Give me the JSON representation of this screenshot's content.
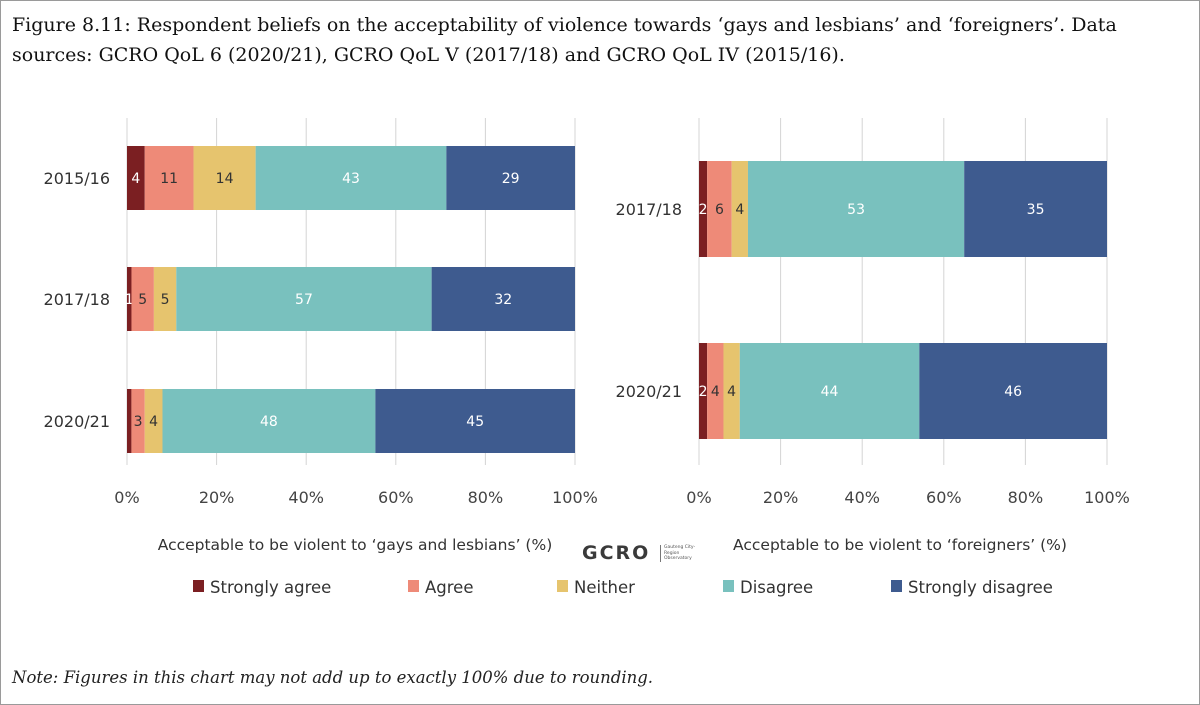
{
  "figure": {
    "title": "Figure 8.11: Respondent beliefs on the acceptability of violence towards ‘gays and lesbians’ and ‘foreigners’. Data sources: GCRO QoL 6 (2020/21), GCRO QoL V (2017/18) and GCRO QoL IV (2015/16).",
    "note": "Note: Figures in this chart may not add up to exactly 100% due to rounding.",
    "logo": {
      "text": "GCRO",
      "subtitle": "Gauteng City-Region Observatory"
    }
  },
  "legend": [
    {
      "label": "Strongly agree",
      "color": "#7b1f22"
    },
    {
      "label": "Agree",
      "color": "#ee8a78"
    },
    {
      "label": "Neither",
      "color": "#e6c46e"
    },
    {
      "label": "Disagree",
      "color": "#79c1be"
    },
    {
      "label": "Strongly disagree",
      "color": "#3e5b8f"
    }
  ],
  "chart_data": [
    {
      "type": "bar",
      "orientation": "horizontal",
      "stacked": true,
      "xlabel": "Acceptable to be violent to ‘gays and lesbians’ (%)",
      "ylabel": "",
      "xlim": [
        0,
        100
      ],
      "xticks": [
        "0%",
        "20%",
        "40%",
        "60%",
        "80%",
        "100%"
      ],
      "grid": true,
      "categories": [
        "2015/16",
        "2017/18",
        "2020/21"
      ],
      "series": [
        {
          "name": "Strongly agree",
          "values": [
            4,
            1,
            1
          ],
          "labels": [
            "4",
            "1",
            ""
          ]
        },
        {
          "name": "Agree",
          "values": [
            11,
            5,
            3
          ],
          "labels": [
            "11",
            "5",
            "3"
          ]
        },
        {
          "name": "Neither",
          "values": [
            14,
            5,
            4
          ],
          "labels": [
            "14",
            "5",
            "4"
          ]
        },
        {
          "name": "Disagree",
          "values": [
            43,
            57,
            48
          ],
          "labels": [
            "43",
            "57",
            "48"
          ]
        },
        {
          "name": "Strongly disagree",
          "values": [
            29,
            32,
            45
          ],
          "labels": [
            "29",
            "32",
            "45"
          ]
        }
      ]
    },
    {
      "type": "bar",
      "orientation": "horizontal",
      "stacked": true,
      "xlabel": "Acceptable to be violent to ‘foreigners’ (%)",
      "ylabel": "",
      "xlim": [
        0,
        100
      ],
      "xticks": [
        "0%",
        "20%",
        "40%",
        "60%",
        "80%",
        "100%"
      ],
      "grid": true,
      "categories": [
        "2017/18",
        "2020/21"
      ],
      "series": [
        {
          "name": "Strongly agree",
          "values": [
            2,
            2
          ],
          "labels": [
            "2",
            "2"
          ]
        },
        {
          "name": "Agree",
          "values": [
            6,
            4
          ],
          "labels": [
            "6",
            "4"
          ]
        },
        {
          "name": "Neither",
          "values": [
            4,
            4
          ],
          "labels": [
            "4",
            "4"
          ]
        },
        {
          "name": "Disagree",
          "values": [
            53,
            44
          ],
          "labels": [
            "53",
            "44"
          ]
        },
        {
          "name": "Strongly disagree",
          "values": [
            35,
            46
          ],
          "labels": [
            "35",
            "46"
          ]
        }
      ]
    }
  ]
}
